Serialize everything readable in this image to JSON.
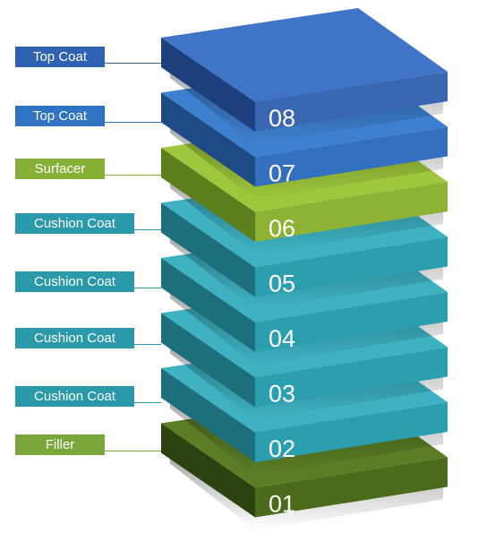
{
  "layers": [
    {
      "number": "08",
      "label": "Top Coat",
      "top": "#3f74c6",
      "side": "#1d3f7e",
      "front": "#3a67b4",
      "label_bg": "#2f62b3"
    },
    {
      "number": "07",
      "label": "Top Coat",
      "top": "#3d80cf",
      "side": "#1e4a86",
      "front": "#3370bf",
      "label_bg": "#2f73c3"
    },
    {
      "number": "06",
      "label": "Surfacer",
      "top": "#9fc63c",
      "side": "#5c7f1d",
      "front": "#8db234",
      "label_bg": "#86b035"
    },
    {
      "number": "05",
      "label": "Cushion Coat",
      "top": "#3eb2c2",
      "side": "#1d6f7c",
      "front": "#2b9fb0",
      "label_bg": "#2a9aaa"
    },
    {
      "number": "04",
      "label": "Cushion Coat",
      "top": "#3eb2c2",
      "side": "#1d6f7c",
      "front": "#2b9fb0",
      "label_bg": "#2a9aaa"
    },
    {
      "number": "03",
      "label": "Cushion Coat",
      "top": "#3eb2c2",
      "side": "#1d6f7c",
      "front": "#2b9fb0",
      "label_bg": "#2a9aaa"
    },
    {
      "number": "02",
      "label": "Cushion Coat",
      "top": "#3eb2c2",
      "side": "#1d6f7c",
      "front": "#2b9fb0",
      "label_bg": "#2a9aaa"
    },
    {
      "number": "01",
      "label": "Filler",
      "top": "#5a7d25",
      "side": "#2c4210",
      "front": "#4a6b1c",
      "label_bg": "#7aa63a"
    }
  ]
}
